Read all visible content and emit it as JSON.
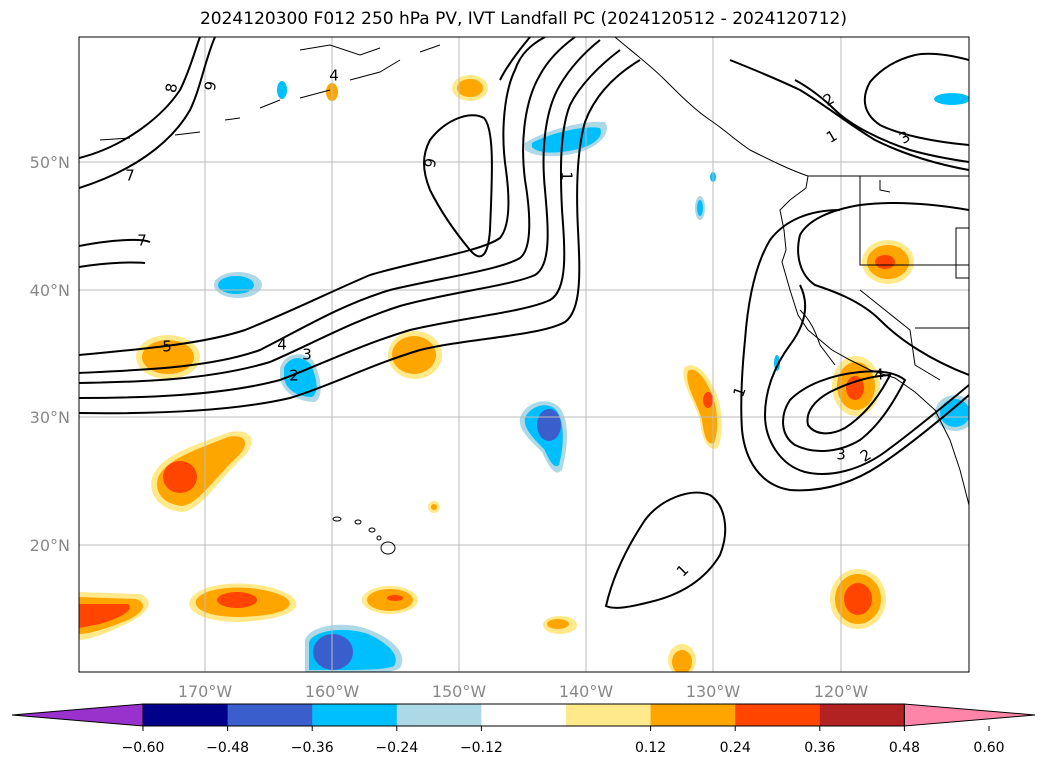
{
  "title": "2024120300 F012 250 hPa PV, IVT Landfall PC (2024120512 - 2024120712)",
  "latitude_labels": [
    "50°N",
    "40°N",
    "30°N",
    "20°N"
  ],
  "longitude_labels": [
    "170°W",
    "160°W",
    "150°W",
    "140°W",
    "130°W",
    "120°W"
  ],
  "colorbar": {
    "ticks": [
      "−0.60",
      "−0.48",
      "−0.36",
      "−0.24",
      "−0.12",
      "0.12",
      "0.24",
      "0.36",
      "0.48",
      "0.60"
    ],
    "colors": [
      "#9932cc",
      "#00008b",
      "#3a5fcd",
      "#00bfff",
      "#add8e6",
      "#ffffff",
      "#ffe98a",
      "#ffa500",
      "#ff4500",
      "#b22222",
      "#ff85a8"
    ]
  },
  "contour_labels": [
    "8",
    "9",
    "7",
    "7",
    "4",
    "9",
    "1",
    "5",
    "4",
    "3",
    "2",
    "1",
    "2",
    "1",
    "3",
    "4",
    "3",
    "2",
    "1"
  ]
}
